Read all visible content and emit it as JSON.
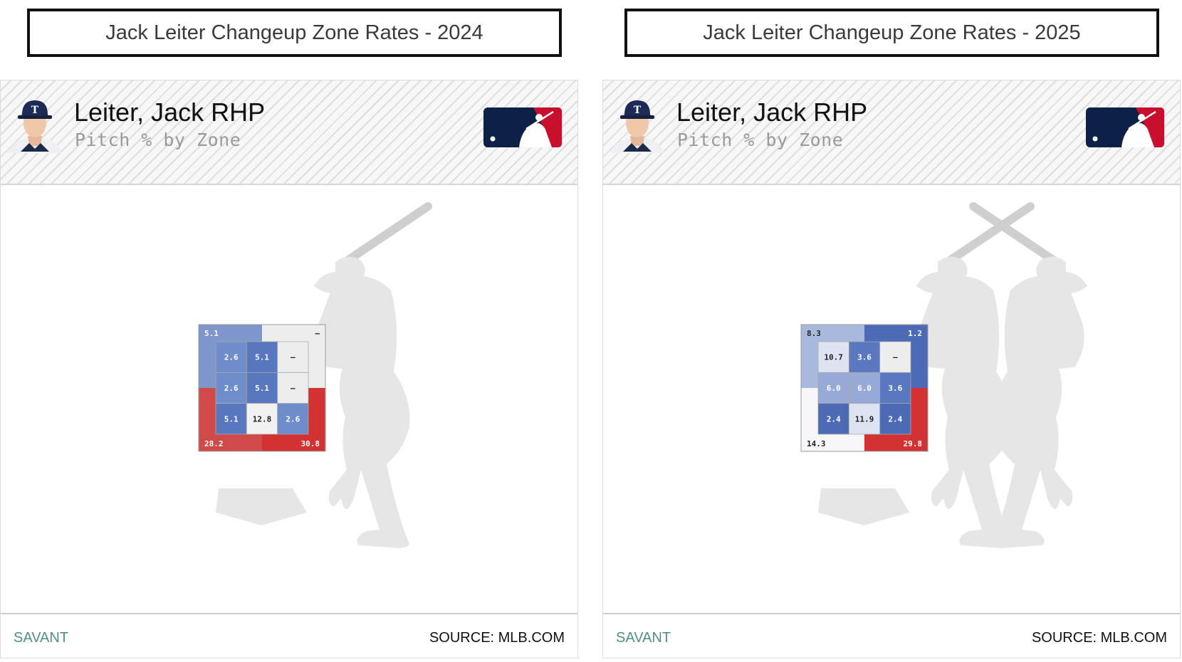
{
  "panels": [
    {
      "title": "Jack Leiter Changeup Zone Rates - 2024",
      "player_name": "Leiter, Jack RHP",
      "subtitle": "Pitch % by Zone",
      "footer_left": "SAVANT",
      "footer_right": "SOURCE: MLB.COM"
    },
    {
      "title": "Jack Leiter Changeup Zone Rates - 2025",
      "player_name": "Leiter, Jack RHP",
      "subtitle": "Pitch % by Zone",
      "footer_left": "SAVANT",
      "footer_right": "SOURCE: MLB.COM"
    }
  ],
  "colors": {
    "high": "#d23a3a",
    "low": "#4f6fb8",
    "neutral": "#f2f2f2",
    "silhouette": "#e6e6e6",
    "bat": "#cfcfcf"
  },
  "chart_data": [
    {
      "type": "heatmap",
      "title": "Jack Leiter Changeup Zone Rates - 2024",
      "batters": [
        "right"
      ],
      "inner_zone": [
        [
          "2.6",
          "5.1",
          "—"
        ],
        [
          "2.6",
          "5.1",
          "—"
        ],
        [
          "5.1",
          "12.8",
          "2.6"
        ]
      ],
      "outer_zone": {
        "top_left": "5.1",
        "top_right": "—",
        "bottom_left": "28.2",
        "bottom_right": "30.8"
      },
      "cell_colors": {
        "inner": [
          [
            "#6f8ccb",
            "#5977bf",
            "#ededed"
          ],
          [
            "#6f8ccb",
            "#5977bf",
            "#ededed"
          ],
          [
            "#5977bf",
            "#f1f1f1",
            "#6f8ccb"
          ]
        ],
        "outer": {
          "top_left": "#7e96cc",
          "top_right": "#ededed",
          "bottom_left": "#d14a4a",
          "bottom_right": "#d23232"
        }
      }
    },
    {
      "type": "heatmap",
      "title": "Jack Leiter Changeup Zone Rates - 2025",
      "batters": [
        "left",
        "right"
      ],
      "inner_zone": [
        [
          "10.7",
          "3.6",
          "—"
        ],
        [
          "6.0",
          "6.0",
          "3.6"
        ],
        [
          "2.4",
          "11.9",
          "2.4"
        ]
      ],
      "outer_zone": {
        "top_left": "8.3",
        "top_right": "1.2",
        "bottom_left": "14.3",
        "bottom_right": "29.8"
      },
      "cell_colors": {
        "inner": [
          [
            "#dde3f0",
            "#5a78bf",
            "#ededed"
          ],
          [
            "#97a9d6",
            "#97a9d6",
            "#5a78bf"
          ],
          [
            "#4d6bb5",
            "#dde3f0",
            "#4d6bb5"
          ]
        ],
        "outer": {
          "top_left": "#a9b9dd",
          "top_right": "#4c6ab5",
          "bottom_left": "#f7f7f9",
          "bottom_right": "#d23232"
        }
      }
    }
  ]
}
